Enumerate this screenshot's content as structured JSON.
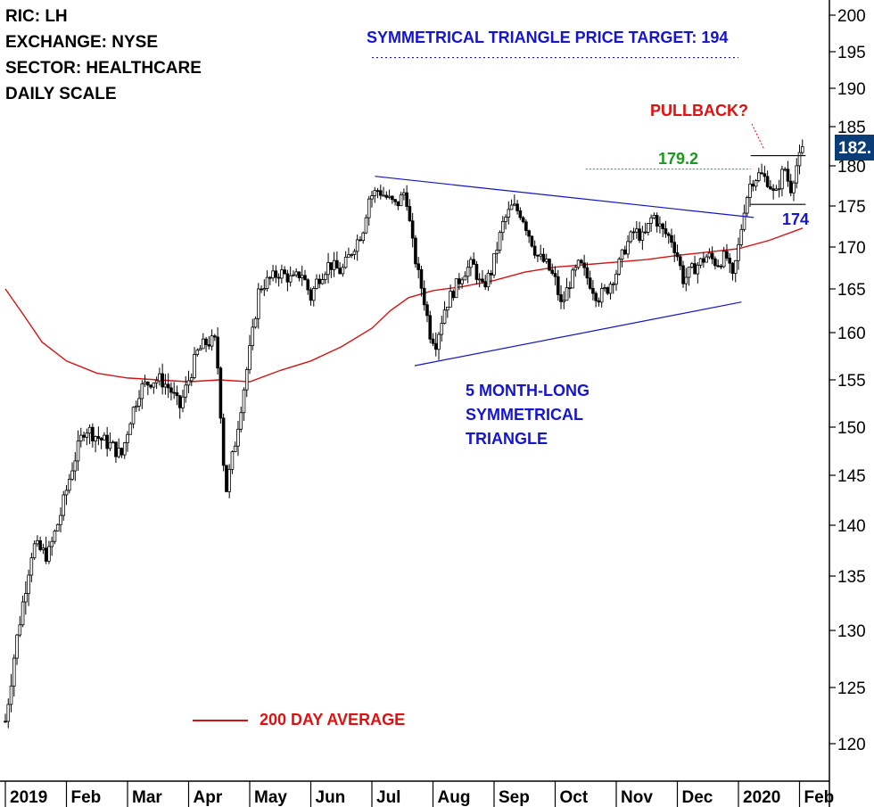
{
  "header": {
    "lines": [
      "RIC: LH",
      "EXCHANGE: NYSE",
      "SECTOR: HEALTHCARE",
      "DAILY SCALE"
    ]
  },
  "annotations": {
    "target": "SYMMETRICAL TRIANGLE PRICE TARGET: 194",
    "pullback": "PULLBACK?",
    "resistance": "179.2",
    "breakout": "174",
    "pattern_line1": "5 MONTH-LONG",
    "pattern_line2": "SYMMETRICAL",
    "pattern_line3": "TRIANGLE",
    "legend_ma": "200 DAY AVERAGE"
  },
  "price_tag": "182.",
  "colors": {
    "price": "#000000",
    "moving_average": "#d41414",
    "trendline": "#1414c8",
    "annotation_blue": "#1414d2",
    "annotation_red": "#e01010",
    "annotation_green": "#1a9a1a",
    "price_tag_bg": "#0a3c78"
  },
  "chart_data": {
    "type": "line",
    "title": "",
    "ylim": [
      117,
      202
    ],
    "y_ticks": [
      120,
      125,
      130,
      135,
      140,
      145,
      150,
      155,
      160,
      165,
      170,
      175,
      180,
      185,
      190,
      195,
      200
    ],
    "x_tick_labels": [
      "2019",
      "Feb",
      "Mar",
      "Apr",
      "May",
      "Jun",
      "Jul",
      "Aug",
      "Sep",
      "Oct",
      "Nov",
      "Dec",
      "2020",
      "Feb"
    ],
    "x_tick_months": [
      0,
      1,
      2,
      3,
      4,
      5,
      6,
      7,
      8,
      9,
      10,
      11,
      12,
      13
    ],
    "price_path": [
      [
        0.0,
        122
      ],
      [
        0.15,
        128
      ],
      [
        0.3,
        133
      ],
      [
        0.45,
        138
      ],
      [
        0.7,
        137
      ],
      [
        0.9,
        141
      ],
      [
        1.1,
        146
      ],
      [
        1.3,
        150
      ],
      [
        1.5,
        149
      ],
      [
        1.75,
        148
      ],
      [
        1.9,
        147
      ],
      [
        2.05,
        151
      ],
      [
        2.2,
        154
      ],
      [
        2.4,
        155
      ],
      [
        2.55,
        155
      ],
      [
        2.7,
        154
      ],
      [
        2.85,
        152
      ],
      [
        3.0,
        155
      ],
      [
        3.15,
        158
      ],
      [
        3.3,
        159
      ],
      [
        3.45,
        159
      ],
      [
        3.55,
        149
      ],
      [
        3.6,
        143
      ],
      [
        3.75,
        148
      ],
      [
        3.9,
        154
      ],
      [
        4.05,
        160
      ],
      [
        4.15,
        165
      ],
      [
        4.3,
        166
      ],
      [
        4.5,
        167
      ],
      [
        4.7,
        166
      ],
      [
        4.85,
        167
      ],
      [
        5.0,
        164
      ],
      [
        5.1,
        166
      ],
      [
        5.3,
        168
      ],
      [
        5.5,
        167
      ],
      [
        5.7,
        170
      ],
      [
        5.85,
        172
      ],
      [
        5.95,
        176
      ],
      [
        6.1,
        177
      ],
      [
        6.25,
        176
      ],
      [
        6.4,
        175
      ],
      [
        6.55,
        177
      ],
      [
        6.65,
        171
      ],
      [
        6.75,
        167
      ],
      [
        6.85,
        164
      ],
      [
        6.95,
        160
      ],
      [
        7.05,
        159
      ],
      [
        7.2,
        163
      ],
      [
        7.35,
        165
      ],
      [
        7.5,
        167
      ],
      [
        7.65,
        168
      ],
      [
        7.8,
        165
      ],
      [
        7.95,
        167
      ],
      [
        8.05,
        170
      ],
      [
        8.15,
        173
      ],
      [
        8.3,
        175
      ],
      [
        8.45,
        174
      ],
      [
        8.55,
        172
      ],
      [
        8.7,
        169
      ],
      [
        8.85,
        168
      ],
      [
        9.0,
        166
      ],
      [
        9.1,
        163
      ],
      [
        9.25,
        166
      ],
      [
        9.4,
        168
      ],
      [
        9.55,
        166
      ],
      [
        9.7,
        164
      ],
      [
        9.85,
        165
      ],
      [
        10.0,
        167
      ],
      [
        10.15,
        170
      ],
      [
        10.3,
        172
      ],
      [
        10.45,
        171
      ],
      [
        10.6,
        174
      ],
      [
        10.75,
        172
      ],
      [
        10.9,
        171
      ],
      [
        11.0,
        169
      ],
      [
        11.1,
        166
      ],
      [
        11.2,
        167
      ],
      [
        11.35,
        168
      ],
      [
        11.5,
        169
      ],
      [
        11.65,
        168
      ],
      [
        11.8,
        169
      ],
      [
        11.9,
        166
      ],
      [
        12.0,
        170
      ],
      [
        12.1,
        175
      ],
      [
        12.2,
        178
      ],
      [
        12.35,
        179
      ],
      [
        12.5,
        178
      ],
      [
        12.6,
        176
      ],
      [
        12.75,
        180
      ],
      [
        12.85,
        177
      ],
      [
        12.95,
        180
      ],
      [
        13.05,
        182
      ]
    ],
    "moving_average_200": [
      [
        0.0,
        165
      ],
      [
        0.3,
        162
      ],
      [
        0.6,
        159
      ],
      [
        1.0,
        157
      ],
      [
        1.5,
        155.7
      ],
      [
        2.0,
        155.2
      ],
      [
        2.5,
        155.0
      ],
      [
        3.0,
        154.8
      ],
      [
        3.5,
        155.0
      ],
      [
        4.0,
        154.8
      ],
      [
        4.5,
        156.0
      ],
      [
        5.0,
        157.0
      ],
      [
        5.5,
        158.5
      ],
      [
        6.0,
        160.5
      ],
      [
        6.3,
        162.5
      ],
      [
        6.6,
        164.0
      ],
      [
        7.0,
        164.8
      ],
      [
        7.5,
        165.3
      ],
      [
        8.0,
        166.0
      ],
      [
        8.5,
        167.0
      ],
      [
        9.0,
        167.6
      ],
      [
        9.5,
        167.9
      ],
      [
        10.0,
        168.2
      ],
      [
        10.5,
        168.5
      ],
      [
        11.0,
        169.0
      ],
      [
        11.5,
        169.4
      ],
      [
        12.0,
        169.8
      ],
      [
        12.5,
        170.8
      ],
      [
        13.05,
        172.3
      ]
    ],
    "trendlines": {
      "upper": [
        [
          6.05,
          178.7
        ],
        [
          12.25,
          173.6
        ]
      ],
      "lower": [
        [
          6.7,
          156.5
        ],
        [
          12.05,
          163.5
        ]
      ],
      "box_top": [
        [
          12.2,
          181.3
        ],
        [
          13.1,
          181.3
        ]
      ],
      "box_bottom": [
        [
          12.2,
          175.2
        ],
        [
          13.1,
          175.2
        ]
      ],
      "resistance_179_2": [
        [
          9.5,
          179.6
        ],
        [
          12.2,
          179.6
        ]
      ],
      "target": [
        [
          6.0,
          194.2
        ],
        [
          12.0,
          194.2
        ]
      ]
    },
    "last_price": 182
  }
}
